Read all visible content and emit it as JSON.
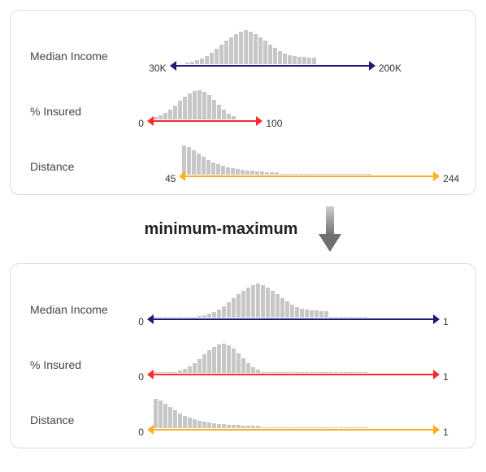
{
  "colors": {
    "bar": "#c7c7c7",
    "panel_border": "#dcdcdc",
    "text": "#444444",
    "value_text": "#333333",
    "arrow_shaft_dark": "#6f6f6f",
    "arrow_shaft_light": "#cfcfcf"
  },
  "transition_label": "minimum-maximum",
  "panels": [
    {
      "id": "before",
      "rows": [
        {
          "label": "Median Income",
          "min": "30K",
          "max": "200K",
          "arrow_color": "#1b1b7a",
          "arrow_start_pct": 11,
          "arrow_end_pct": 75,
          "hist_start_pct": 16,
          "hist": [
            2,
            3,
            5,
            7,
            10,
            14,
            19,
            24,
            29,
            33,
            37,
            40,
            42,
            40,
            37,
            33,
            29,
            24,
            20,
            16,
            13,
            11,
            10,
            9,
            9,
            8,
            8
          ]
        },
        {
          "label": "% Insured",
          "min": "0",
          "max": "100",
          "arrow_color": "#ff2a2a",
          "arrow_start_pct": 4,
          "arrow_end_pct": 40,
          "hist_start_pct": 6,
          "hist": [
            3,
            5,
            8,
            12,
            17,
            23,
            28,
            32,
            35,
            36,
            34,
            30,
            24,
            18,
            12,
            7,
            4
          ]
        },
        {
          "label": "Distance",
          "min": "45",
          "max": "244",
          "arrow_color": "#ffb020",
          "arrow_start_pct": 14,
          "arrow_end_pct": 95,
          "hist_start_pct": 15,
          "hist": [
            36,
            34,
            30,
            26,
            22,
            18,
            15,
            13,
            11,
            9,
            8,
            7,
            6,
            5,
            5,
            4,
            4,
            3,
            3,
            3,
            0,
            0,
            0,
            0,
            0,
            0,
            0,
            0,
            0,
            0,
            0,
            0,
            0,
            0,
            0,
            0,
            0,
            0,
            0
          ]
        }
      ]
    },
    {
      "id": "after",
      "rows": [
        {
          "label": "Median Income",
          "min": "0",
          "max": "1",
          "arrow_color": "#1b1b7a",
          "arrow_start_pct": 4,
          "arrow_end_pct": 95,
          "hist_start_pct": 6,
          "hist": [
            0,
            0,
            0,
            0,
            0,
            0,
            0,
            0,
            0,
            2,
            3,
            5,
            7,
            10,
            14,
            19,
            24,
            29,
            33,
            37,
            40,
            42,
            40,
            37,
            33,
            29,
            24,
            20,
            16,
            13,
            11,
            10,
            9,
            9,
            8,
            8,
            0,
            0,
            0,
            0,
            0,
            0,
            0,
            0
          ]
        },
        {
          "label": "% Insured",
          "min": "0",
          "max": "1",
          "arrow_color": "#ff2a2a",
          "arrow_start_pct": 4,
          "arrow_end_pct": 95,
          "hist_start_pct": 6,
          "hist": [
            0,
            0,
            0,
            0,
            0,
            3,
            5,
            8,
            12,
            17,
            23,
            28,
            32,
            35,
            36,
            34,
            30,
            24,
            18,
            12,
            7,
            4,
            0,
            0,
            0,
            0,
            0,
            0,
            0,
            0,
            0,
            0,
            0,
            0,
            0,
            0,
            0,
            0,
            0,
            0,
            0,
            0,
            0,
            0
          ]
        },
        {
          "label": "Distance",
          "min": "0",
          "max": "1",
          "arrow_color": "#ffb020",
          "arrow_start_pct": 4,
          "arrow_end_pct": 95,
          "hist_start_pct": 6,
          "hist": [
            36,
            34,
            30,
            26,
            22,
            18,
            15,
            13,
            11,
            9,
            8,
            7,
            6,
            5,
            5,
            4,
            4,
            4,
            3,
            3,
            3,
            3,
            0,
            0,
            0,
            0,
            0,
            0,
            0,
            0,
            0,
            0,
            0,
            0,
            0,
            0,
            0,
            0,
            0,
            0,
            0,
            0,
            0,
            0
          ]
        }
      ]
    }
  ]
}
